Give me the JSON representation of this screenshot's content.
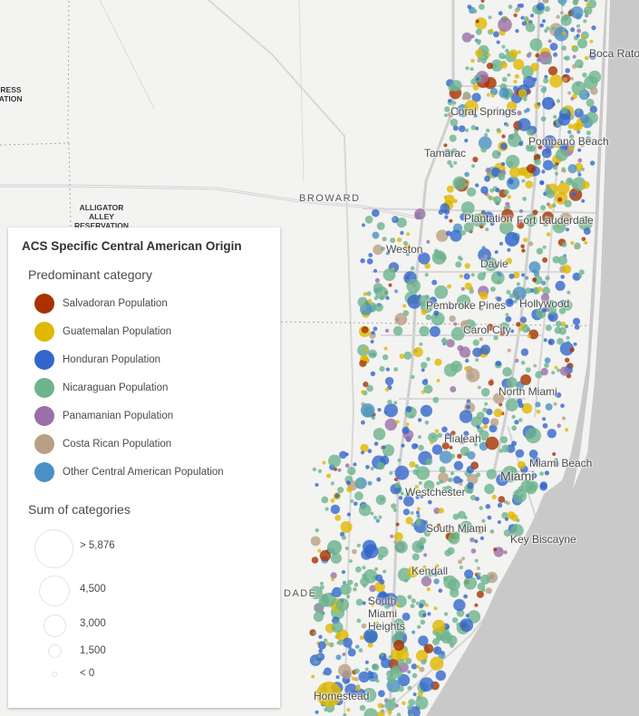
{
  "map": {
    "place_labels": [
      {
        "text": "Boca Raton",
        "cls": "big"
      },
      {
        "text": "Coral Springs",
        "cls": "big"
      },
      {
        "text": "Pompano Beach",
        "cls": "big"
      },
      {
        "text": "Tamarac",
        "cls": "big"
      },
      {
        "text": "BROWARD",
        "cls": "region"
      },
      {
        "text": "Plantation",
        "cls": "big"
      },
      {
        "text": "Fort Lauderdale",
        "cls": "big"
      },
      {
        "text": "Weston",
        "cls": "big"
      },
      {
        "text": "Davie",
        "cls": "big"
      },
      {
        "text": "Pembroke Pines",
        "cls": "big"
      },
      {
        "text": "Hollywood",
        "cls": "big"
      },
      {
        "text": "Carol City",
        "cls": "big"
      },
      {
        "text": "North Miami",
        "cls": "big"
      },
      {
        "text": "Hialeah",
        "cls": "big"
      },
      {
        "text": "Miami Beach",
        "cls": "big"
      },
      {
        "text": "Miami",
        "cls": "big"
      },
      {
        "text": "Westchester",
        "cls": "big"
      },
      {
        "text": "South Miami",
        "cls": "big"
      },
      {
        "text": "Key Biscayne",
        "cls": "big"
      },
      {
        "text": "Kendall",
        "cls": "big"
      },
      {
        "text": "DADE",
        "cls": "region"
      },
      {
        "text": "South Miami Heights",
        "cls": "big"
      },
      {
        "text": "Homestead",
        "cls": "big"
      }
    ],
    "reservation_labels": [
      "CYPRESS\nERVATION",
      "ALLIGATOR\nALLEY\nRESERVATION"
    ],
    "land_color": "#f3f3f1",
    "water_color": "#c9c9c9"
  },
  "legend": {
    "title": "ACS Specific Central American Origin",
    "predominant_heading": "Predominant category",
    "categories": [
      {
        "label": "Salvadoran Population",
        "color": "#a83200"
      },
      {
        "label": "Guatemalan Population",
        "color": "#e0b800"
      },
      {
        "label": "Honduran Population",
        "color": "#3366cc"
      },
      {
        "label": "Nicaraguan Population",
        "color": "#6db38e"
      },
      {
        "label": "Panamanian Population",
        "color": "#9b6fa8"
      },
      {
        "label": "Costa Rican Population",
        "color": "#b9a085"
      },
      {
        "label": "Other Central American Population",
        "color": "#4a90c4"
      }
    ],
    "size_heading": "Sum of categories",
    "sizes": [
      {
        "label": "> 5,876"
      },
      {
        "label": "4,500"
      },
      {
        "label": "3,000"
      },
      {
        "label": "1,500"
      },
      {
        "label": "< 0"
      }
    ]
  }
}
